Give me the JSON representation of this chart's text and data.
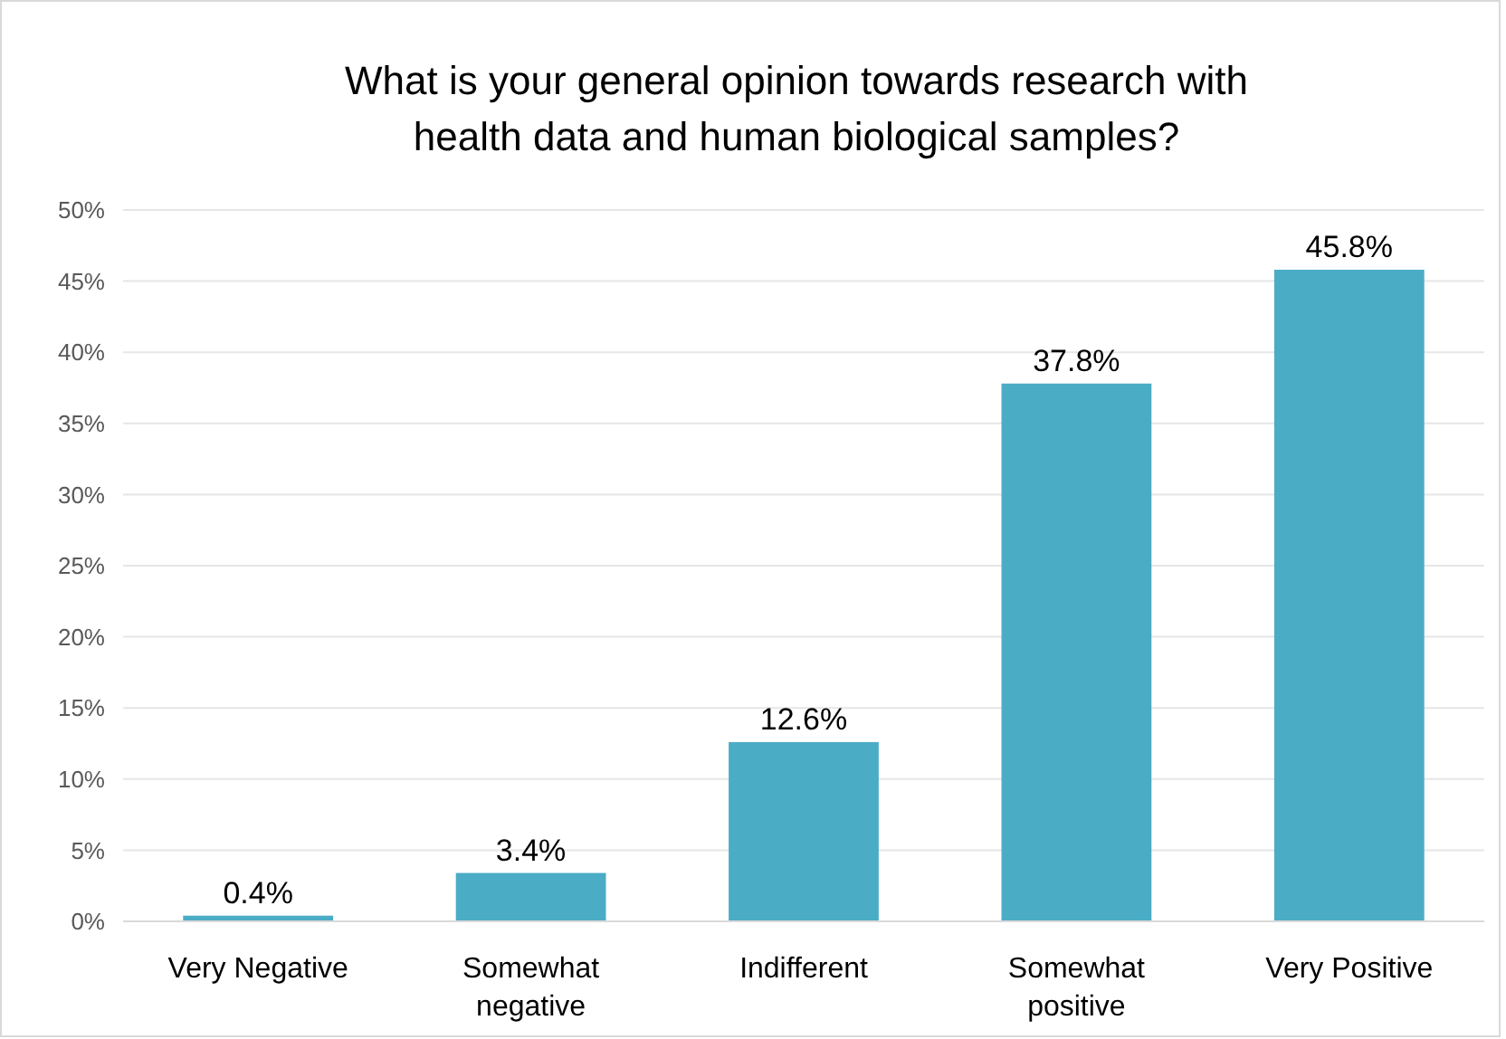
{
  "chart_data": {
    "type": "bar",
    "title": "What is your general opinion towards research with health data and human biological samples?",
    "categories": [
      "Very Negative",
      "Somewhat negative",
      "Indifferent",
      "Somewhat positive",
      "Very Positive"
    ],
    "values": [
      0.4,
      3.4,
      12.6,
      37.8,
      45.8
    ],
    "value_labels": [
      "0.4%",
      "3.4%",
      "12.6%",
      "37.8%",
      "45.8%"
    ],
    "color": "#4bacc6",
    "ylim": [
      0,
      50
    ],
    "yticks": [
      {
        "value": 0,
        "label": "0%"
      },
      {
        "value": 5,
        "label": "5%"
      },
      {
        "value": 10,
        "label": "10%"
      },
      {
        "value": 15,
        "label": "15%"
      },
      {
        "value": 20,
        "label": "20%"
      },
      {
        "value": 25,
        "label": "25%"
      },
      {
        "value": 30,
        "label": "30%"
      },
      {
        "value": 35,
        "label": "35%"
      },
      {
        "value": 40,
        "label": "40%"
      },
      {
        "value": 45,
        "label": "45%"
      },
      {
        "value": 50,
        "label": "50%"
      }
    ],
    "grid": "y"
  }
}
